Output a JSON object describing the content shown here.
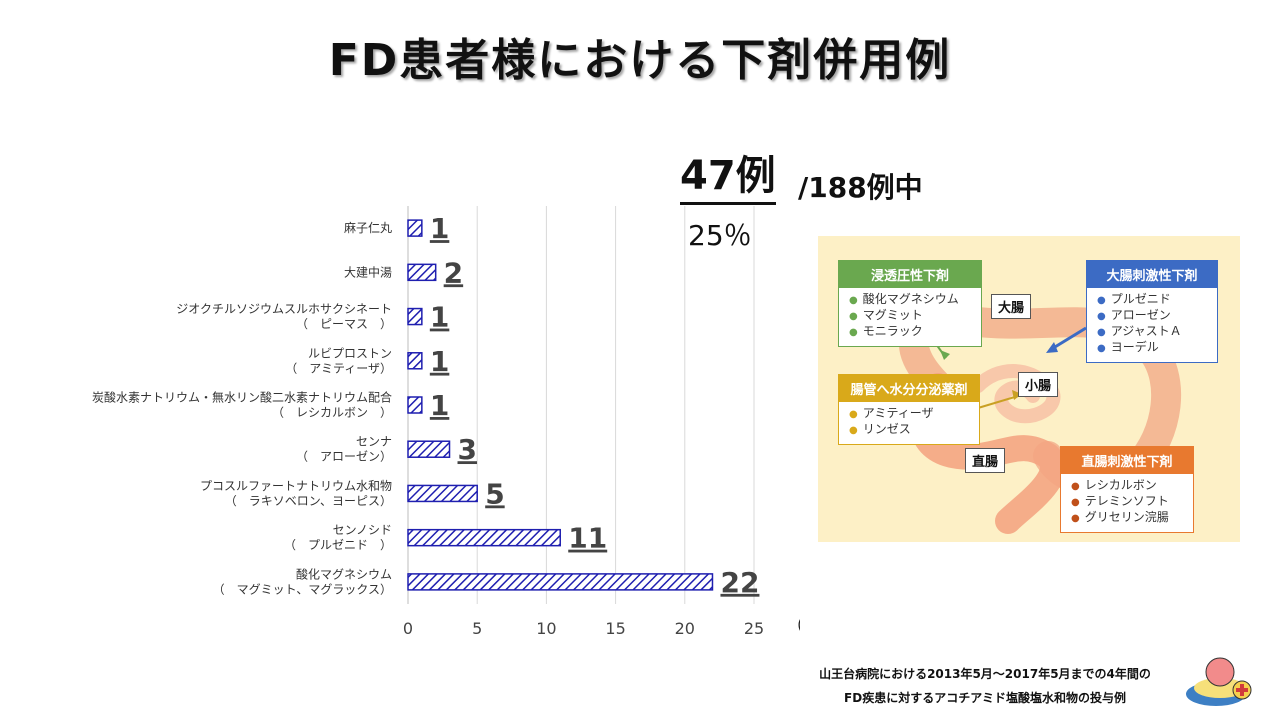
{
  "title": "FD患者様における下剤併用例",
  "summary": {
    "total": "47例",
    "denominator": "/188例中",
    "percent": "25％"
  },
  "chart_data": {
    "type": "bar",
    "orientation": "horizontal",
    "categories": [
      [
        "麻子仁丸"
      ],
      [
        "大建中湯"
      ],
      [
        "ジオクチルソジウムスルホサクシネート",
        "（　ピーマス　）"
      ],
      [
        "ルビプロストン",
        "（　アミティーザ）"
      ],
      [
        "炭酸水素ナトリウム・無水リン酸二水素ナトリウム配合",
        "（　レシカルボン　）"
      ],
      [
        "センナ",
        "（　アローゼン）"
      ],
      [
        "プコスルファートナトリウム水和物",
        "（　ラキソベロン、ヨーピス）"
      ],
      [
        "センノシド",
        "（　プルゼニド　）"
      ],
      [
        "酸化マグネシウム",
        "（　マグミット、マグラックス）"
      ]
    ],
    "values": [
      1,
      2,
      1,
      1,
      1,
      3,
      5,
      11,
      22
    ],
    "value_labels": [
      "1",
      "2",
      "1",
      "1",
      "1",
      "3",
      "5",
      "11",
      "22"
    ],
    "xlim": [
      0,
      25
    ],
    "xticks": [
      "0",
      "5",
      "10",
      "15",
      "20",
      "25"
    ],
    "xticks_values": [
      0,
      5,
      10,
      15,
      20,
      25
    ],
    "xunit": "（例）",
    "grid": true,
    "bar_color": "#1f1fb0",
    "bar_pattern": "diagonal-hatch"
  },
  "diagram": {
    "organ_labels": {
      "large_intestine": "大腸",
      "small_intestine": "小腸",
      "rectum": "直腸"
    },
    "boxes": [
      {
        "title": "浸透圧性下剤",
        "color": "#6aa84f",
        "items": [
          "酸化マグネシウム",
          "マグミット",
          "モニラック"
        ]
      },
      {
        "title": "大腸刺激性下剤",
        "color": "#3c6bc4",
        "items": [
          "プルゼニド",
          "アローゼン",
          "アジャストＡ",
          "ヨーデル"
        ]
      },
      {
        "title": "腸管へ水分分泌薬剤",
        "color": "#d9a91a",
        "items": [
          "アミティーザ",
          "リンゼス"
        ]
      },
      {
        "title": "直腸刺激性下剤",
        "color": "#e8792f",
        "items": [
          "レシカルボン",
          "テレミンソフト",
          "グリセリン浣腸"
        ]
      }
    ]
  },
  "footnote": [
    "山王台病院における2013年5月～2017年5月までの4年間の",
    "FD疾患に対するアコチアミド塩酸塩水和物の投与例"
  ]
}
